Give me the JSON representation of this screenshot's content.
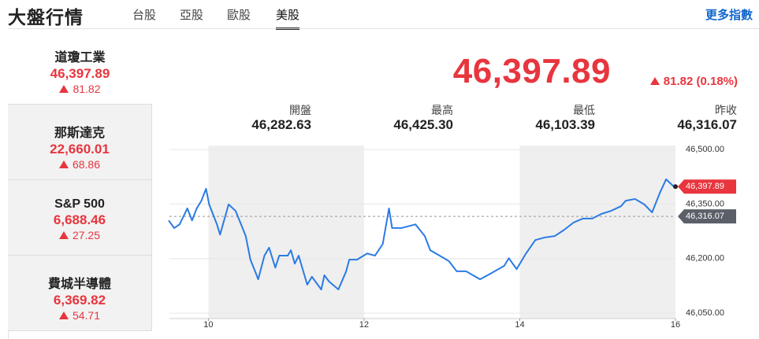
{
  "header": {
    "title": "大盤行情",
    "tabs": [
      "台股",
      "亞股",
      "歐股",
      "美股"
    ],
    "active_tab": 3,
    "more_link": "更多指數"
  },
  "indices": [
    {
      "name": "道瓊工業",
      "value": "46,397.89",
      "change": "81.82"
    },
    {
      "name": "那斯達克",
      "value": "22,660.01",
      "change": "68.86"
    },
    {
      "name": "S&P 500",
      "value": "6,688.46",
      "change": "27.25"
    },
    {
      "name": "費城半導體",
      "value": "6,369.82",
      "change": "54.71"
    }
  ],
  "quote": {
    "price": "46,397.89",
    "change": "81.82 (0.18%)"
  },
  "stats": [
    {
      "label": "開盤",
      "value": "46,282.63"
    },
    {
      "label": "最高",
      "value": "46,425.30"
    },
    {
      "label": "最低",
      "value": "46,103.39"
    },
    {
      "label": "昨收",
      "value": "46,316.07"
    }
  ],
  "chart_data": {
    "type": "line",
    "x": [
      9.49,
      9.56,
      9.63,
      9.73,
      9.79,
      9.85,
      9.91,
      9.97,
      10.01,
      10.11,
      10.15,
      10.26,
      10.35,
      10.42,
      10.48,
      10.54,
      10.6,
      10.64,
      10.72,
      10.78,
      10.86,
      10.91,
      11.02,
      11.06,
      11.11,
      11.16,
      11.27,
      11.33,
      11.45,
      11.49,
      11.55,
      11.67,
      11.77,
      11.81,
      11.91,
      12.04,
      12.14,
      12.24,
      12.32,
      12.36,
      12.48,
      12.66,
      12.78,
      12.85,
      12.97,
      13.09,
      13.19,
      13.31,
      13.49,
      13.62,
      13.8,
      13.86,
      13.96,
      14.08,
      14.2,
      14.32,
      14.45,
      14.57,
      14.69,
      14.81,
      14.93,
      15.05,
      15.17,
      15.3,
      15.36,
      15.48,
      15.6,
      15.7,
      15.8,
      15.88,
      15.98
    ],
    "series": [
      {
        "color": "#2a7be4",
        "values": [
          46305,
          46284,
          46294,
          46338,
          46305,
          46338,
          46359,
          46392,
          46349,
          46294,
          46266,
          46349,
          46331,
          46294,
          46262,
          46197,
          46165,
          46143,
          46208,
          46230,
          46175,
          46208,
          46208,
          46223,
          46186,
          46208,
          46128,
          46150,
          46115,
          46154,
          46137,
          46115,
          46165,
          46197,
          46197,
          46214,
          46208,
          46240,
          46338,
          46284,
          46284,
          46294,
          46262,
          46223,
          46208,
          46193,
          46165,
          46165,
          46143,
          46158,
          46180,
          46201,
          46171,
          46214,
          46251,
          46258,
          46262,
          46279,
          46299,
          46310,
          46310,
          46323,
          46331,
          46344,
          46359,
          46364,
          46349,
          46327,
          46381,
          46418,
          46398
        ]
      }
    ],
    "xlim": [
      9.5,
      16
    ],
    "ylim": [
      46035,
      46511
    ],
    "xticks": [
      10,
      12,
      14,
      16
    ],
    "yticks": [
      {
        "value": 46050,
        "label": "46,050.00"
      },
      {
        "value": 46200,
        "label": "46,200.00"
      },
      {
        "value": 46350,
        "label": "46,350.00"
      },
      {
        "value": 46500,
        "label": "46,500.00"
      }
    ],
    "grid": true,
    "reference": {
      "value": 46316.07,
      "label": "46,316.07"
    },
    "last": {
      "value": 46397.89,
      "label": "46,397.89"
    }
  }
}
